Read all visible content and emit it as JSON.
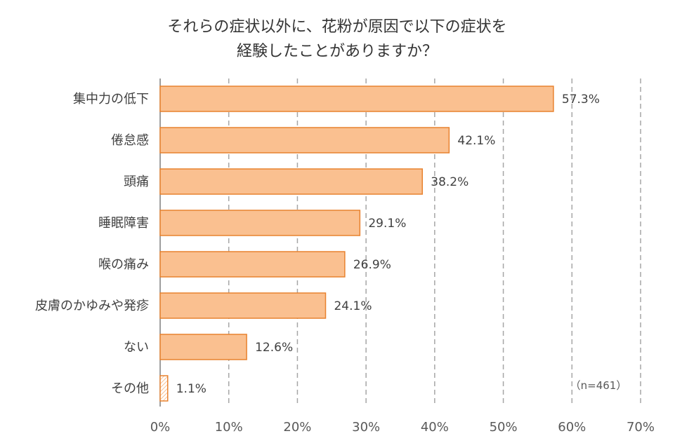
{
  "chart_data": {
    "type": "bar",
    "orientation": "horizontal",
    "title": [
      "それらの症状以外に、花粉が原因で以下の症状を",
      "経験したことがありますか？"
    ],
    "categories": [
      "集中力の低下",
      "倦怠感",
      "頭痛",
      "睡眠障害",
      "喉の痛み",
      "皮膚のかゆみや発疹",
      "ない",
      "その他"
    ],
    "values": [
      57.3,
      42.1,
      38.2,
      29.1,
      26.9,
      24.1,
      12.6,
      1.1
    ],
    "value_labels": [
      "57.3%",
      "42.1%",
      "38.2%",
      "29.1%",
      "26.9%",
      "24.1%",
      "12.6%",
      "1.1%"
    ],
    "xlim": [
      0,
      70
    ],
    "x_ticks": [
      0,
      10,
      20,
      30,
      40,
      50,
      60,
      70
    ],
    "x_tick_labels": [
      "0%",
      "10%",
      "20%",
      "30%",
      "40%",
      "50%",
      "60%",
      "70%"
    ],
    "grid": "vertical-dashed",
    "annotation": "（n=461）",
    "colors": {
      "bar_fill": "#FAC090",
      "bar_stroke": "#E8822F",
      "grid": "#A6A6A6",
      "axis": "#7F7F7F"
    }
  }
}
